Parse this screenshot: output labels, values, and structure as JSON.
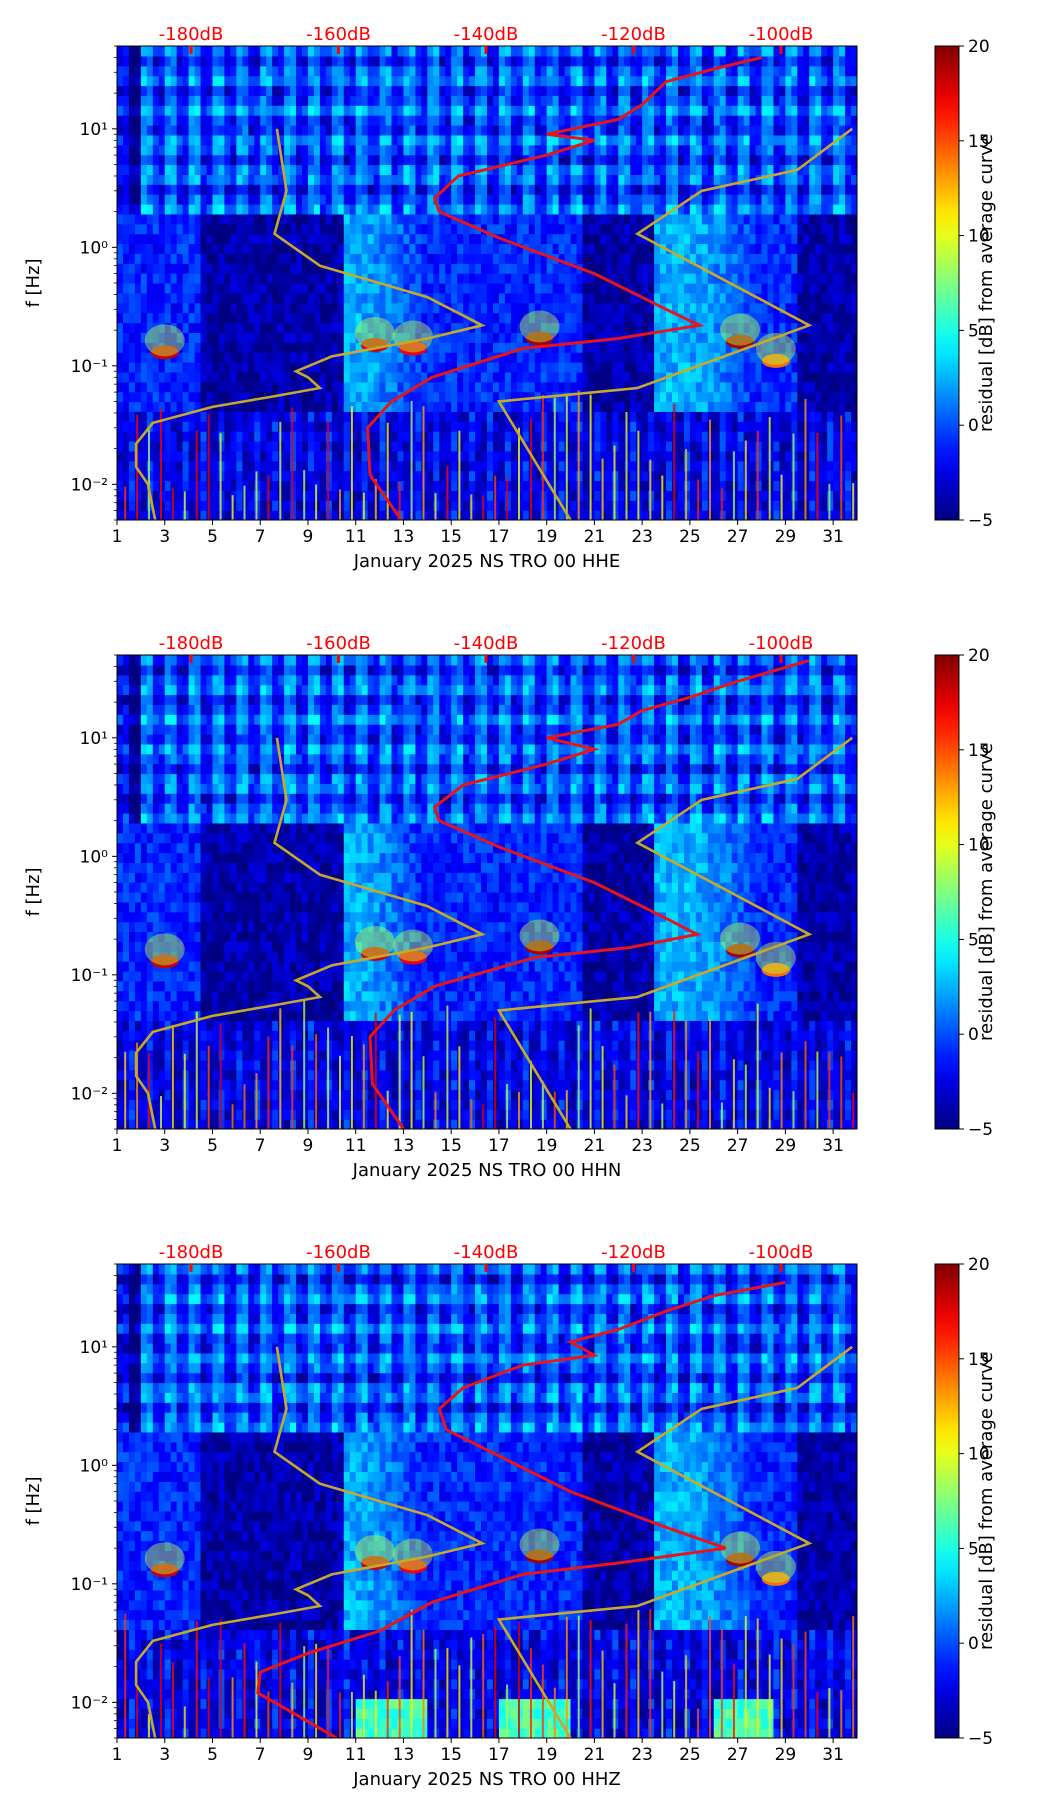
{
  "colors": {
    "psd_curve": "#e8141c",
    "reference_curve": "#c8a82a",
    "db_labels": "#ff0000",
    "colormap": "jet"
  },
  "chart_data": [
    {
      "type": "heatmap",
      "xlabel": "January 2025 NS TRO 00 HHE",
      "ylabel": "f [Hz]",
      "colorbar_label": "residual [dB] from average curve",
      "x_ticks": [
        "1",
        "3",
        "5",
        "7",
        "9",
        "11",
        "13",
        "15",
        "17",
        "19",
        "21",
        "23",
        "25",
        "27",
        "29",
        "31"
      ],
      "xlim": [
        1,
        32
      ],
      "y_ticks": [
        "10⁻²",
        "10⁻¹",
        "10⁰",
        "10¹"
      ],
      "ylim": [
        0.005,
        50
      ],
      "y_scale": "log",
      "colorbar_ticks": [
        "−5",
        "0",
        "5",
        "10",
        "15",
        "20"
      ],
      "clim": [
        -5,
        20
      ],
      "db_axis_labels": [
        "-180dB",
        "-160dB",
        "-140dB",
        "-120dB",
        "-100dB"
      ],
      "db_axis_values": [
        -180,
        -160,
        -140,
        -120,
        -100
      ],
      "red_curve_points": [
        [
          12.9,
          0.005
        ],
        [
          11.6,
          0.012
        ],
        [
          11.5,
          0.03
        ],
        [
          12.5,
          0.05
        ],
        [
          14.2,
          0.08
        ],
        [
          18,
          0.14
        ],
        [
          22,
          0.17
        ],
        [
          25.4,
          0.22
        ],
        [
          24,
          0.3
        ],
        [
          21,
          0.6
        ],
        [
          17,
          1.2
        ],
        [
          14.5,
          2
        ],
        [
          14.3,
          2.6
        ],
        [
          15.3,
          4
        ],
        [
          19,
          6
        ],
        [
          21,
          8
        ],
        [
          19,
          9
        ],
        [
          22,
          12
        ],
        [
          23,
          16
        ],
        [
          24,
          25
        ],
        [
          26,
          32
        ],
        [
          28,
          40
        ]
      ],
      "gold_curve_points": [
        [
          2.6,
          0.005
        ],
        [
          2.3,
          0.01
        ],
        [
          1.8,
          0.014
        ],
        [
          1.8,
          0.022
        ],
        [
          2.5,
          0.033
        ],
        [
          5,
          0.045
        ],
        [
          7.5,
          0.055
        ],
        [
          9.5,
          0.065
        ],
        [
          9,
          0.08
        ],
        [
          8.5,
          0.09
        ],
        [
          10,
          0.12
        ],
        [
          14,
          0.17
        ],
        [
          16.3,
          0.22
        ],
        [
          14,
          0.38
        ],
        [
          9.5,
          0.7
        ],
        [
          7.6,
          1.3
        ],
        [
          8.1,
          3
        ],
        [
          7.7,
          10
        ],
        [
          null,
          null
        ],
        [
          20,
          0.005
        ],
        [
          17,
          0.05
        ],
        [
          22.8,
          0.065
        ],
        [
          30,
          0.22
        ],
        [
          22.8,
          1.3
        ],
        [
          25.5,
          3
        ],
        [
          29.5,
          4.5
        ],
        [
          31.8,
          10
        ]
      ],
      "events": [
        [
          3,
          0.13,
          18
        ],
        [
          11.8,
          0.15,
          18
        ],
        [
          13.4,
          0.14,
          17
        ],
        [
          18.7,
          0.17,
          19
        ],
        [
          27.1,
          0.16,
          19
        ],
        [
          28.6,
          0.11,
          14
        ]
      ]
    },
    {
      "type": "heatmap",
      "xlabel": "January 2025 NS TRO 00 HHN",
      "ylabel": "f [Hz]",
      "colorbar_label": "residual [dB] from average curve",
      "x_ticks": [
        "1",
        "3",
        "5",
        "7",
        "9",
        "11",
        "13",
        "15",
        "17",
        "19",
        "21",
        "23",
        "25",
        "27",
        "29",
        "31"
      ],
      "xlim": [
        1,
        32
      ],
      "y_ticks": [
        "10⁻²",
        "10⁻¹",
        "10⁰",
        "10¹"
      ],
      "ylim": [
        0.005,
        50
      ],
      "y_scale": "log",
      "colorbar_ticks": [
        "−5",
        "0",
        "5",
        "10",
        "15",
        "20"
      ],
      "clim": [
        -5,
        20
      ],
      "db_axis_labels": [
        "-180dB",
        "-160dB",
        "-140dB",
        "-120dB",
        "-100dB"
      ],
      "db_axis_values": [
        -180,
        -160,
        -140,
        -120,
        -100
      ],
      "red_curve_points": [
        [
          13,
          0.005
        ],
        [
          11.7,
          0.012
        ],
        [
          11.6,
          0.03
        ],
        [
          12.6,
          0.05
        ],
        [
          14.3,
          0.08
        ],
        [
          18.5,
          0.14
        ],
        [
          22.5,
          0.17
        ],
        [
          25.3,
          0.22
        ],
        [
          24,
          0.3
        ],
        [
          21,
          0.6
        ],
        [
          17,
          1.2
        ],
        [
          14.5,
          2
        ],
        [
          14.3,
          2.6
        ],
        [
          15.5,
          4
        ],
        [
          19,
          6
        ],
        [
          21,
          8
        ],
        [
          19,
          10
        ],
        [
          22,
          13
        ],
        [
          23,
          17
        ],
        [
          25,
          22
        ],
        [
          27,
          30
        ],
        [
          30,
          45
        ]
      ],
      "gold_curve_points": [
        [
          2.6,
          0.005
        ],
        [
          2.3,
          0.01
        ],
        [
          1.8,
          0.014
        ],
        [
          1.8,
          0.022
        ],
        [
          2.5,
          0.033
        ],
        [
          5,
          0.045
        ],
        [
          7.5,
          0.055
        ],
        [
          9.5,
          0.065
        ],
        [
          9,
          0.08
        ],
        [
          8.5,
          0.09
        ],
        [
          10,
          0.12
        ],
        [
          14,
          0.17
        ],
        [
          16.3,
          0.22
        ],
        [
          14,
          0.38
        ],
        [
          9.5,
          0.7
        ],
        [
          7.6,
          1.3
        ],
        [
          8.1,
          3
        ],
        [
          7.7,
          10
        ],
        [
          null,
          null
        ],
        [
          20,
          0.005
        ],
        [
          17,
          0.05
        ],
        [
          22.8,
          0.065
        ],
        [
          30,
          0.22
        ],
        [
          22.8,
          1.3
        ],
        [
          25.5,
          3
        ],
        [
          29.5,
          4.5
        ],
        [
          31.8,
          10
        ]
      ],
      "events": [
        [
          3,
          0.13,
          18
        ],
        [
          11.8,
          0.15,
          18
        ],
        [
          13.4,
          0.14,
          17
        ],
        [
          18.7,
          0.17,
          19
        ],
        [
          27.1,
          0.16,
          19
        ],
        [
          28.6,
          0.11,
          14
        ]
      ]
    },
    {
      "type": "heatmap",
      "xlabel": "January 2025 NS TRO 00 HHZ",
      "ylabel": "f [Hz]",
      "colorbar_label": "residual [dB] from average curve",
      "x_ticks": [
        "1",
        "3",
        "5",
        "7",
        "9",
        "11",
        "13",
        "15",
        "17",
        "19",
        "21",
        "23",
        "25",
        "27",
        "29",
        "31"
      ],
      "xlim": [
        1,
        32
      ],
      "y_ticks": [
        "10⁻²",
        "10⁻¹",
        "10⁰",
        "10¹"
      ],
      "ylim": [
        0.005,
        50
      ],
      "y_scale": "log",
      "colorbar_ticks": [
        "−5",
        "0",
        "5",
        "10",
        "15",
        "20"
      ],
      "clim": [
        -5,
        20
      ],
      "db_axis_labels": [
        "-180dB",
        "-160dB",
        "-140dB",
        "-120dB",
        "-100dB"
      ],
      "db_axis_values": [
        -180,
        -160,
        -140,
        -120,
        -100
      ],
      "red_curve_points": [
        [
          10.2,
          0.005
        ],
        [
          8,
          0.009
        ],
        [
          6.9,
          0.012
        ],
        [
          7,
          0.018
        ],
        [
          9,
          0.026
        ],
        [
          12,
          0.04
        ],
        [
          14.2,
          0.07
        ],
        [
          18,
          0.12
        ],
        [
          22,
          0.15
        ],
        [
          26.5,
          0.2
        ],
        [
          24,
          0.3
        ],
        [
          20,
          0.6
        ],
        [
          17,
          1.2
        ],
        [
          14.8,
          2
        ],
        [
          14.5,
          3
        ],
        [
          15.5,
          4.5
        ],
        [
          18,
          7
        ],
        [
          21,
          8.5
        ],
        [
          20,
          11
        ],
        [
          22,
          14
        ],
        [
          24,
          20
        ],
        [
          26,
          27
        ],
        [
          29,
          35
        ]
      ],
      "gold_curve_points": [
        [
          2.6,
          0.005
        ],
        [
          2.3,
          0.01
        ],
        [
          1.8,
          0.014
        ],
        [
          1.8,
          0.022
        ],
        [
          2.5,
          0.033
        ],
        [
          5,
          0.045
        ],
        [
          7.5,
          0.055
        ],
        [
          9.5,
          0.065
        ],
        [
          9,
          0.08
        ],
        [
          8.5,
          0.09
        ],
        [
          10,
          0.12
        ],
        [
          14,
          0.17
        ],
        [
          16.3,
          0.22
        ],
        [
          14,
          0.38
        ],
        [
          9.5,
          0.7
        ],
        [
          7.6,
          1.3
        ],
        [
          8.1,
          3
        ],
        [
          7.7,
          10
        ],
        [
          null,
          null
        ],
        [
          20,
          0.005
        ],
        [
          17,
          0.05
        ],
        [
          22.8,
          0.065
        ],
        [
          30,
          0.22
        ],
        [
          22.8,
          1.3
        ],
        [
          25.5,
          3
        ],
        [
          29.5,
          4.5
        ],
        [
          31.8,
          10
        ]
      ],
      "events": [
        [
          3,
          0.13,
          18
        ],
        [
          11.8,
          0.15,
          18
        ],
        [
          13.4,
          0.14,
          17
        ],
        [
          18.7,
          0.17,
          19
        ],
        [
          27.1,
          0.16,
          19
        ],
        [
          28.6,
          0.11,
          14
        ]
      ]
    }
  ]
}
